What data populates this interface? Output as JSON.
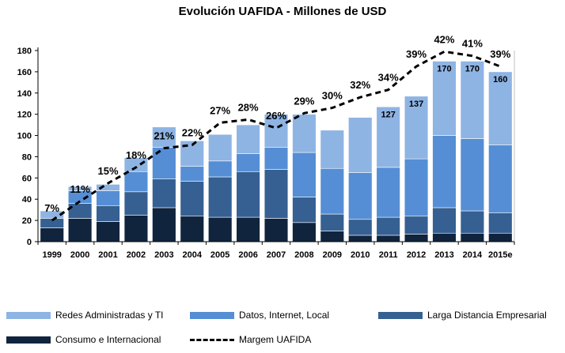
{
  "chart_data": {
    "type": "bar",
    "stacked": true,
    "title": "Evolución UAFIDA - Millones de USD",
    "xlabel": "",
    "ylabel": "",
    "ylim": [
      0,
      180
    ],
    "yticks": [
      0,
      20,
      40,
      60,
      80,
      100,
      120,
      140,
      160,
      180
    ],
    "grid": false,
    "legend_position": "bottom",
    "categories": [
      "1999",
      "2000",
      "2001",
      "2002",
      "2003",
      "2004",
      "2005",
      "2006",
      "2007",
      "2008",
      "2009",
      "2010",
      "2011",
      "2012",
      "2013",
      "2014",
      "2015e"
    ],
    "series": [
      {
        "name": "Consumo e Internacional",
        "color": "#10243e",
        "values": [
          13,
          22,
          19,
          25,
          32,
          24,
          23,
          23,
          22,
          18,
          10,
          6,
          6,
          7,
          8,
          8,
          8
        ]
      },
      {
        "name": "Larga Distancia Empresarial",
        "color": "#366092",
        "values": [
          9,
          14,
          15,
          22,
          27,
          33,
          38,
          43,
          46,
          24,
          16,
          15,
          17,
          17,
          24,
          21,
          19
        ]
      },
      {
        "name": "Datos, Internet, Local",
        "color": "#558ed5",
        "values": [
          0,
          12,
          14,
          19,
          30,
          14,
          15,
          17,
          21,
          42,
          43,
          44,
          47,
          54,
          68,
          68,
          64
        ]
      },
      {
        "name": "Redes Administradas y TI",
        "color": "#8eb4e3",
        "values": [
          7,
          4,
          6,
          13,
          19,
          24,
          25,
          27,
          31,
          36,
          36,
          52,
          57,
          59,
          70,
          73,
          69
        ]
      }
    ],
    "line": {
      "name": "Margem UAFIDA",
      "color": "#000000",
      "values": [
        20,
        38,
        55,
        70,
        88,
        91,
        112,
        115,
        107,
        121,
        126,
        136,
        143,
        165,
        179,
        175,
        165
      ]
    },
    "margin_labels": [
      "7%",
      "11%",
      "15%",
      "18%",
      "21%",
      "22%",
      "27%",
      "28%",
      "26%",
      "29%",
      "30%",
      "32%",
      "34%",
      "39%",
      "42%",
      "41%",
      "39%"
    ],
    "total_labels": [
      "",
      "",
      "",
      "",
      "",
      "",
      "",
      "",
      "",
      "",
      "",
      "",
      "127",
      "137",
      "170",
      "170",
      "160"
    ]
  },
  "legend": {
    "items": [
      {
        "label": "Redes Administradas y TI",
        "color": "#8eb4e3",
        "kind": "swatch"
      },
      {
        "label": "Datos, Internet, Local",
        "color": "#558ed5",
        "kind": "swatch"
      },
      {
        "label": "Larga Distancia Empresarial",
        "color": "#366092",
        "kind": "swatch"
      },
      {
        "label": "Consumo e Internacional",
        "color": "#10243e",
        "kind": "swatch"
      },
      {
        "label": "Margem UAFIDA",
        "color": "#000000",
        "kind": "dash"
      }
    ]
  }
}
